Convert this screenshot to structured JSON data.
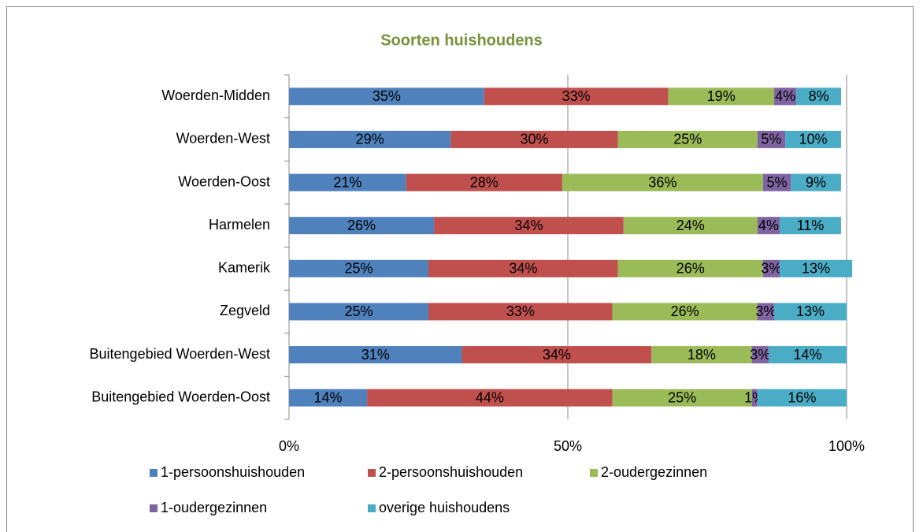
{
  "chart_data": {
    "type": "bar",
    "orientation": "horizontal",
    "stacked": true,
    "title": "Soorten huishoudens",
    "categories": [
      "Woerden-Midden",
      "Woerden-West",
      "Woerden-Oost",
      "Harmelen",
      "Kamerik",
      "Zegveld",
      "Buitengebied Woerden-West",
      "Buitengebied Woerden-Oost"
    ],
    "series": [
      {
        "name": "1-persoonshuishouden",
        "color": "#4f81bd",
        "values": [
          35,
          29,
          21,
          26,
          25,
          25,
          31,
          14
        ],
        "value_labels": [
          "35%",
          "29%",
          "21%",
          "26%",
          "25%",
          "25%",
          "31%",
          "14%"
        ]
      },
      {
        "name": "2-persoonshuishouden",
        "color": "#c0504d",
        "values": [
          33,
          30,
          28,
          34,
          34,
          33,
          34,
          44
        ],
        "value_labels": [
          "33%",
          "30%",
          "28%",
          "34%",
          "34%",
          "33%",
          "34%",
          "44%"
        ]
      },
      {
        "name": "2-oudergezinnen",
        "color": "#9bbb59",
        "values": [
          19,
          25,
          36,
          24,
          26,
          26,
          18,
          25
        ],
        "value_labels": [
          "19%",
          "25%",
          "36%",
          "24%",
          "26%",
          "26%",
          "18%",
          "25%"
        ]
      },
      {
        "name": "1-oudergezinnen",
        "color": "#8064a2",
        "values": [
          4,
          5,
          5,
          4,
          3,
          3,
          3,
          1
        ],
        "value_labels": [
          "4%",
          "5%",
          "5%",
          "4%",
          "3%",
          "3%",
          "3%",
          "1%"
        ]
      },
      {
        "name": "overige huishoudens",
        "color": "#4bacc6",
        "values": [
          8,
          10,
          9,
          11,
          13,
          13,
          14,
          16
        ],
        "value_labels": [
          "8%",
          "10%",
          "9%",
          "11%",
          "13%",
          "13%",
          "14%",
          "16%"
        ]
      }
    ],
    "xlim": [
      0,
      100
    ],
    "xticks": [
      {
        "value": 0,
        "label": "0%"
      },
      {
        "value": 50,
        "label": "50%"
      },
      {
        "value": 100,
        "label": "100%"
      }
    ],
    "grid": true,
    "legend": "bottom"
  }
}
